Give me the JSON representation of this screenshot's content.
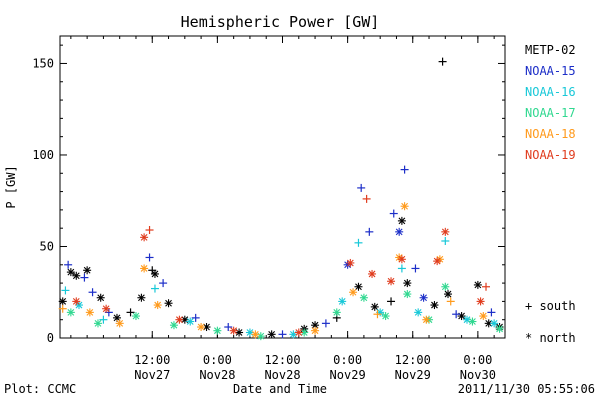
{
  "chart_data": {
    "type": "scatter",
    "title": "Hemispheric Power [GW]",
    "xlabel": "Date and Time",
    "ylabel": "P [GW]",
    "ylim": [
      0,
      165
    ],
    "xlim": [
      "2011-11-26 19:00",
      "2011-11-30 05:00"
    ],
    "y_ticks": [
      0,
      50,
      100,
      150
    ],
    "x_ticks": [
      {
        "time": "12:00",
        "date": "Nov27",
        "at": "2011-11-27 12:00"
      },
      {
        "time": "0:00",
        "date": "Nov28",
        "at": "2011-11-28 00:00"
      },
      {
        "time": "12:00",
        "date": "Nov28",
        "at": "2011-11-28 12:00"
      },
      {
        "time": "0:00",
        "date": "Nov29",
        "at": "2011-11-29 00:00"
      },
      {
        "time": "12:00",
        "date": "Nov29",
        "at": "2011-11-29 12:00"
      },
      {
        "time": "0:00",
        "date": "Nov30",
        "at": "2011-11-30 00:00"
      }
    ],
    "marker_legend": [
      {
        "symbol": "+",
        "label": "south"
      },
      {
        "symbol": "*",
        "label": "north"
      }
    ],
    "series": [
      {
        "name": "METP-02",
        "color": "#000000",
        "points": [
          [
            "2011-11-26 19:30",
            20,
            "*"
          ],
          [
            "2011-11-26 21:00",
            36,
            "*"
          ],
          [
            "2011-11-26 22:00",
            34,
            "*"
          ],
          [
            "2011-11-27 00:00",
            37,
            "*"
          ],
          [
            "2011-11-27 02:30",
            22,
            "*"
          ],
          [
            "2011-11-27 05:30",
            11,
            "*"
          ],
          [
            "2011-11-27 08:00",
            14,
            "+"
          ],
          [
            "2011-11-27 10:00",
            22,
            "*"
          ],
          [
            "2011-11-27 12:00",
            37,
            "+"
          ],
          [
            "2011-11-27 12:30",
            35,
            "*"
          ],
          [
            "2011-11-27 15:00",
            19,
            "*"
          ],
          [
            "2011-11-27 18:00",
            10,
            "*"
          ],
          [
            "2011-11-27 22:00",
            6,
            "*"
          ],
          [
            "2011-11-28 04:00",
            3,
            "*"
          ],
          [
            "2011-11-28 10:00",
            2,
            "*"
          ],
          [
            "2011-11-28 16:00",
            5,
            "*"
          ],
          [
            "2011-11-28 18:00",
            7,
            "*"
          ],
          [
            "2011-11-28 22:00",
            11,
            "+"
          ],
          [
            "2011-11-29 02:00",
            28,
            "*"
          ],
          [
            "2011-11-29 05:00",
            17,
            "*"
          ],
          [
            "2011-11-29 08:00",
            20,
            "+"
          ],
          [
            "2011-11-29 10:00",
            64,
            "*"
          ],
          [
            "2011-11-29 11:00",
            30,
            "*"
          ],
          [
            "2011-11-29 16:00",
            18,
            "*"
          ],
          [
            "2011-11-29 17:30",
            151,
            "+"
          ],
          [
            "2011-11-29 18:30",
            24,
            "*"
          ],
          [
            "2011-11-29 21:00",
            12,
            "*"
          ],
          [
            "2011-11-30 00:00",
            29,
            "*"
          ],
          [
            "2011-11-30 02:00",
            8,
            "*"
          ],
          [
            "2011-11-30 04:00",
            6,
            "*"
          ]
        ]
      },
      {
        "name": "NOAA-15",
        "color": "#1c2ec8",
        "points": [
          [
            "2011-11-26 20:30",
            40,
            "+"
          ],
          [
            "2011-11-26 23:30",
            33,
            "+"
          ],
          [
            "2011-11-27 01:00",
            25,
            "+"
          ],
          [
            "2011-11-27 04:00",
            14,
            "+"
          ],
          [
            "2011-11-27 11:30",
            44,
            "+"
          ],
          [
            "2011-11-27 14:00",
            30,
            "+"
          ],
          [
            "2011-11-27 20:00",
            11,
            "+"
          ],
          [
            "2011-11-28 02:00",
            6,
            "+"
          ],
          [
            "2011-11-28 12:00",
            2,
            "+"
          ],
          [
            "2011-11-28 20:00",
            8,
            "+"
          ],
          [
            "2011-11-29 00:00",
            40,
            "*"
          ],
          [
            "2011-11-29 02:30",
            82,
            "+"
          ],
          [
            "2011-11-29 04:00",
            58,
            "+"
          ],
          [
            "2011-11-29 08:30",
            68,
            "+"
          ],
          [
            "2011-11-29 09:30",
            58,
            "*"
          ],
          [
            "2011-11-29 10:30",
            92,
            "+"
          ],
          [
            "2011-11-29 12:30",
            38,
            "+"
          ],
          [
            "2011-11-29 14:00",
            22,
            "*"
          ],
          [
            "2011-11-29 20:00",
            13,
            "+"
          ],
          [
            "2011-11-30 02:30",
            14,
            "+"
          ]
        ]
      },
      {
        "name": "NOAA-16",
        "color": "#18c8d8",
        "points": [
          [
            "2011-11-26 20:00",
            26,
            "+"
          ],
          [
            "2011-11-26 22:30",
            18,
            "*"
          ],
          [
            "2011-11-27 03:00",
            10,
            "+"
          ],
          [
            "2011-11-27 12:30",
            27,
            "+"
          ],
          [
            "2011-11-27 19:00",
            9,
            "*"
          ],
          [
            "2011-11-28 06:00",
            3,
            "*"
          ],
          [
            "2011-11-28 14:00",
            2,
            "*"
          ],
          [
            "2011-11-28 23:00",
            20,
            "*"
          ],
          [
            "2011-11-29 02:00",
            52,
            "+"
          ],
          [
            "2011-11-29 06:00",
            14,
            "*"
          ],
          [
            "2011-11-29 10:00",
            38,
            "+"
          ],
          [
            "2011-11-29 13:00",
            14,
            "*"
          ],
          [
            "2011-11-29 18:00",
            53,
            "+"
          ],
          [
            "2011-11-29 22:00",
            10,
            "*"
          ],
          [
            "2011-11-30 03:00",
            8,
            "*"
          ]
        ]
      },
      {
        "name": "NOAA-17",
        "color": "#30d890",
        "points": [
          [
            "2011-11-26 21:00",
            14,
            "*"
          ],
          [
            "2011-11-27 02:00",
            8,
            "*"
          ],
          [
            "2011-11-27 09:00",
            12,
            "*"
          ],
          [
            "2011-11-27 16:00",
            7,
            "*"
          ],
          [
            "2011-11-28 00:00",
            4,
            "*"
          ],
          [
            "2011-11-28 08:00",
            1,
            "*"
          ],
          [
            "2011-11-28 16:00",
            3,
            "*"
          ],
          [
            "2011-11-28 22:00",
            14,
            "*"
          ],
          [
            "2011-11-29 03:00",
            22,
            "*"
          ],
          [
            "2011-11-29 07:00",
            12,
            "*"
          ],
          [
            "2011-11-29 11:00",
            24,
            "*"
          ],
          [
            "2011-11-29 15:00",
            10,
            "*"
          ],
          [
            "2011-11-29 18:00",
            28,
            "*"
          ],
          [
            "2011-11-29 23:00",
            9,
            "*"
          ],
          [
            "2011-11-30 04:00",
            5,
            "*"
          ]
        ]
      },
      {
        "name": "NOAA-18",
        "color": "#ff9a1c",
        "points": [
          [
            "2011-11-26 19:30",
            16,
            "+"
          ],
          [
            "2011-11-27 00:30",
            14,
            "*"
          ],
          [
            "2011-11-27 06:00",
            8,
            "*"
          ],
          [
            "2011-11-27 10:30",
            38,
            "*"
          ],
          [
            "2011-11-27 13:00",
            18,
            "*"
          ],
          [
            "2011-11-27 21:00",
            6,
            "*"
          ],
          [
            "2011-11-28 07:00",
            2,
            "*"
          ],
          [
            "2011-11-28 18:00",
            4,
            "*"
          ],
          [
            "2011-11-29 01:00",
            25,
            "*"
          ],
          [
            "2011-11-29 05:30",
            13,
            "+"
          ],
          [
            "2011-11-29 09:30",
            44,
            "*"
          ],
          [
            "2011-11-29 10:30",
            72,
            "*"
          ],
          [
            "2011-11-29 14:30",
            10,
            "*"
          ],
          [
            "2011-11-29 17:00",
            43,
            "*"
          ],
          [
            "2011-11-29 19:00",
            20,
            "+"
          ],
          [
            "2011-11-30 01:00",
            12,
            "*"
          ]
        ]
      },
      {
        "name": "NOAA-19",
        "color": "#e03c1e",
        "points": [
          [
            "2011-11-26 22:00",
            20,
            "*"
          ],
          [
            "2011-11-27 03:30",
            16,
            "*"
          ],
          [
            "2011-11-27 10:30",
            55,
            "*"
          ],
          [
            "2011-11-27 11:30",
            59,
            "+"
          ],
          [
            "2011-11-27 17:00",
            10,
            "*"
          ],
          [
            "2011-11-28 03:00",
            4,
            "*"
          ],
          [
            "2011-11-28 15:00",
            3,
            "*"
          ],
          [
            "2011-11-29 00:30",
            41,
            "*"
          ],
          [
            "2011-11-29 03:30",
            76,
            "+"
          ],
          [
            "2011-11-29 04:30",
            35,
            "*"
          ],
          [
            "2011-11-29 08:00",
            31,
            "*"
          ],
          [
            "2011-11-29 10:00",
            43,
            "*"
          ],
          [
            "2011-11-29 16:30",
            42,
            "*"
          ],
          [
            "2011-11-29 18:00",
            58,
            "*"
          ],
          [
            "2011-11-30 00:30",
            20,
            "*"
          ],
          [
            "2011-11-30 01:30",
            28,
            "+"
          ]
        ]
      }
    ]
  },
  "footer": {
    "left": "Plot: CCMC",
    "right": "2011/11/30 05:55:06"
  }
}
